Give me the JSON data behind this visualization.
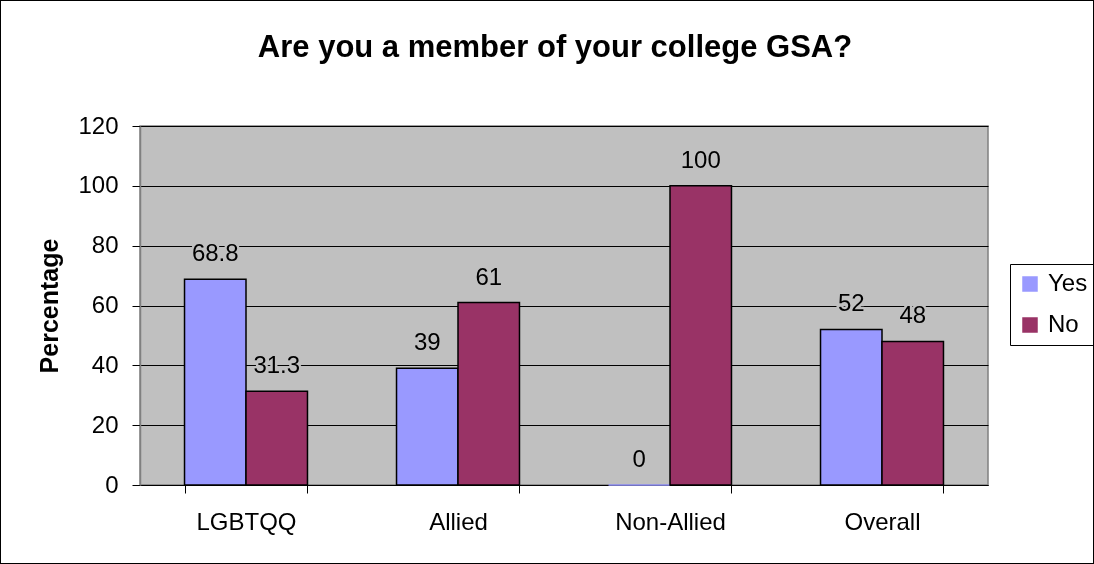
{
  "chart_data": {
    "type": "bar",
    "title": "Are you a member of your college GSA?",
    "ylabel": "Percentage",
    "categories": [
      "LGBTQQ",
      "Allied",
      "Non-Allied",
      "Overall"
    ],
    "series": [
      {
        "name": "Yes",
        "color": "#9999ff",
        "values": [
          68.8,
          39,
          0,
          52
        ]
      },
      {
        "name": "No",
        "color": "#993366",
        "values": [
          31.3,
          61,
          100,
          48
        ]
      }
    ],
    "ylim": [
      0,
      120
    ],
    "yticks": [
      0,
      20,
      40,
      60,
      80,
      100,
      120
    ],
    "grid": "y",
    "legend": "right",
    "data_labels": true
  }
}
